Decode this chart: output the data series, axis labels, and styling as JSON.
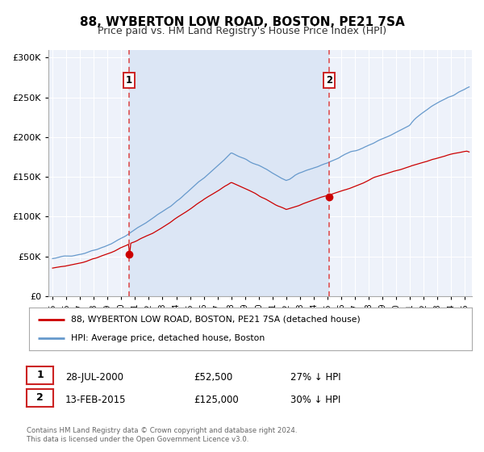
{
  "title": "88, WYBERTON LOW ROAD, BOSTON, PE21 7SA",
  "subtitle": "Price paid vs. HM Land Registry's House Price Index (HPI)",
  "title_fontsize": 11,
  "subtitle_fontsize": 9,
  "background_color": "#ffffff",
  "plot_bg_color": "#eef2fa",
  "shade_color": "#dce6f5",
  "grid_color": "#ffffff",
  "red_line_color": "#cc0000",
  "blue_line_color": "#6699cc",
  "marker1_date": 2000.57,
  "marker1_value": 52500,
  "marker2_date": 2015.12,
  "marker2_value": 125000,
  "vline_color": "#dd4444",
  "sale1_label": "28-JUL-2000",
  "sale1_price": "£52,500",
  "sale1_pct": "27% ↓ HPI",
  "sale2_label": "13-FEB-2015",
  "sale2_price": "£125,000",
  "sale2_pct": "30% ↓ HPI",
  "legend_line1": "88, WYBERTON LOW ROAD, BOSTON, PE21 7SA (detached house)",
  "legend_line2": "HPI: Average price, detached house, Boston",
  "footer1": "Contains HM Land Registry data © Crown copyright and database right 2024.",
  "footer2": "This data is licensed under the Open Government Licence v3.0.",
  "ylim": [
    0,
    310000
  ],
  "xlim_start": 1994.7,
  "xlim_end": 2025.5
}
